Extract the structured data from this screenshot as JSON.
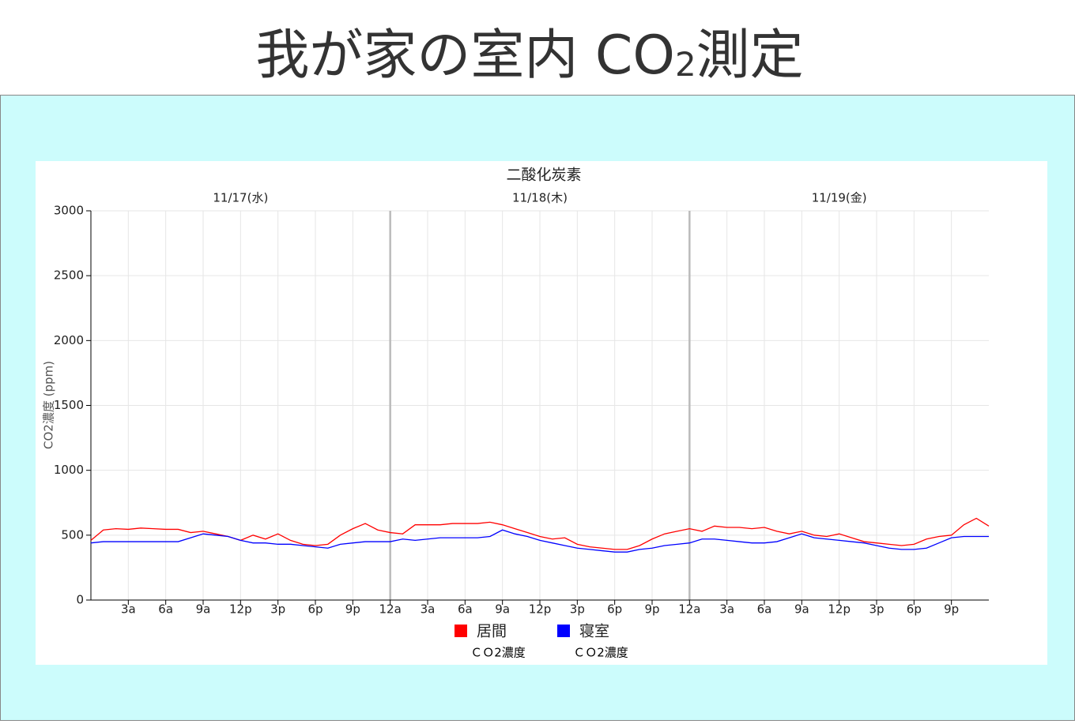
{
  "page": {
    "title": "我が家の室内 CO",
    "title_sub": "2",
    "title_end": "測定"
  },
  "chart_data": {
    "type": "line",
    "title": "二酸化炭素",
    "y_label": "CO2濃度 (ppm)",
    "dates": [
      {
        "value": 12,
        "label": "11/17(水)"
      },
      {
        "value": 36,
        "label": "11/18(木)"
      },
      {
        "value": 60,
        "label": "11/19(金)"
      }
    ],
    "day_separators": [
      24,
      48
    ],
    "xlim": [
      0,
      72
    ],
    "ylim": [
      0,
      3000
    ],
    "yticks": [
      0,
      500,
      1000,
      1500,
      2000,
      2500,
      3000
    ],
    "xticks": [
      {
        "value": 3,
        "label": "3a"
      },
      {
        "value": 6,
        "label": "6a"
      },
      {
        "value": 9,
        "label": "9a"
      },
      {
        "value": 12,
        "label": "12p"
      },
      {
        "value": 15,
        "label": "3p"
      },
      {
        "value": 18,
        "label": "6p"
      },
      {
        "value": 21,
        "label": "9p"
      },
      {
        "value": 24,
        "label": "12a"
      },
      {
        "value": 27,
        "label": "3a"
      },
      {
        "value": 30,
        "label": "6a"
      },
      {
        "value": 33,
        "label": "9a"
      },
      {
        "value": 36,
        "label": "12p"
      },
      {
        "value": 39,
        "label": "3p"
      },
      {
        "value": 42,
        "label": "6p"
      },
      {
        "value": 45,
        "label": "9p"
      },
      {
        "value": 48,
        "label": "12a"
      },
      {
        "value": 51,
        "label": "3a"
      },
      {
        "value": 54,
        "label": "6a"
      },
      {
        "value": 57,
        "label": "9a"
      },
      {
        "value": 60,
        "label": "12p"
      },
      {
        "value": 63,
        "label": "3p"
      },
      {
        "value": 66,
        "label": "6p"
      },
      {
        "value": 69,
        "label": "9p"
      }
    ],
    "grid": true,
    "x": [
      0,
      1,
      2,
      3,
      4,
      5,
      6,
      7,
      8,
      9,
      10,
      11,
      12,
      13,
      14,
      15,
      16,
      17,
      18,
      19,
      20,
      21,
      22,
      23,
      24,
      25,
      26,
      27,
      28,
      29,
      30,
      31,
      32,
      33,
      34,
      35,
      36,
      37,
      38,
      39,
      40,
      41,
      42,
      43,
      44,
      45,
      46,
      47,
      48,
      49,
      50,
      51,
      52,
      53,
      54,
      55,
      56,
      57,
      58,
      59,
      60,
      61,
      62,
      63,
      64,
      65,
      66,
      67,
      68,
      69,
      70,
      71,
      72
    ],
    "series": [
      {
        "name": "居間",
        "subname": "ＣＯ2濃度",
        "color": "#ff0000",
        "values": [
          460,
          540,
          550,
          545,
          555,
          550,
          545,
          545,
          520,
          530,
          510,
          490,
          460,
          500,
          470,
          510,
          460,
          430,
          420,
          430,
          500,
          550,
          590,
          540,
          520,
          510,
          580,
          580,
          580,
          590,
          590,
          590,
          600,
          580,
          550,
          520,
          490,
          470,
          480,
          430,
          410,
          400,
          390,
          390,
          420,
          470,
          510,
          530,
          550,
          530,
          570,
          560,
          560,
          550,
          560,
          530,
          510,
          530,
          500,
          490,
          510,
          480,
          450,
          440,
          430,
          420,
          430,
          470,
          490,
          500,
          580,
          630,
          570
        ]
      },
      {
        "name": "寝室",
        "subname": "ＣＯ2濃度",
        "color": "#0000ff",
        "values": [
          440,
          450,
          450,
          450,
          450,
          450,
          450,
          450,
          480,
          510,
          500,
          490,
          460,
          440,
          440,
          430,
          430,
          420,
          410,
          400,
          430,
          440,
          450,
          450,
          450,
          470,
          460,
          470,
          480,
          480,
          480,
          480,
          490,
          540,
          510,
          490,
          460,
          440,
          420,
          400,
          390,
          380,
          370,
          370,
          390,
          400,
          420,
          430,
          440,
          470,
          470,
          460,
          450,
          440,
          440,
          450,
          480,
          510,
          480,
          470,
          460,
          450,
          440,
          420,
          400,
          390,
          390,
          400,
          440,
          480,
          490,
          490,
          490
        ]
      }
    ]
  }
}
